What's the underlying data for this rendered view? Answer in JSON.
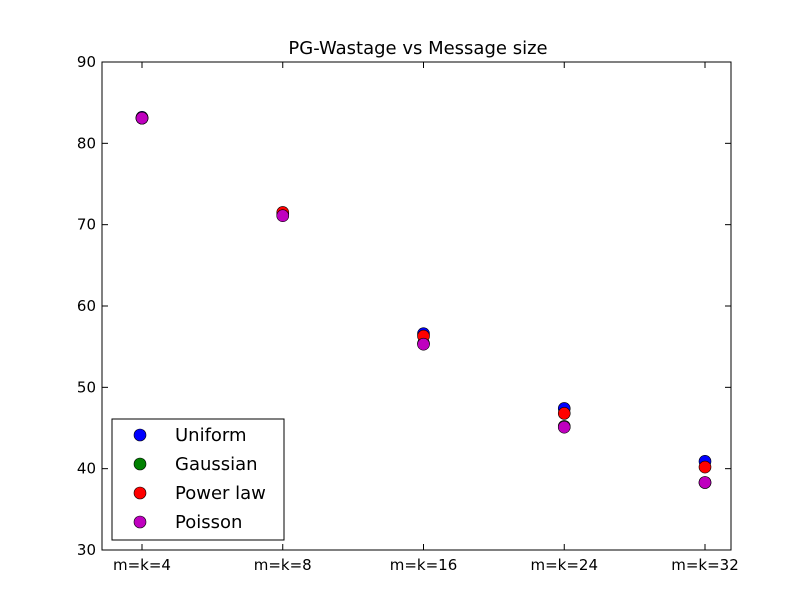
{
  "chart_data": {
    "type": "scatter",
    "title": "PG-Wastage vs Message size",
    "xlabel": "",
    "ylabel": "",
    "categories": [
      "m=k=4",
      "m=k=8",
      "m=k=16",
      "m=k=24",
      "m=k=32"
    ],
    "ylim": [
      30,
      90
    ],
    "yticks": [
      30,
      40,
      50,
      60,
      70,
      80,
      90
    ],
    "grid": false,
    "legend_position": "lower-left",
    "series": [
      {
        "name": "Uniform",
        "color": "#0000ff",
        "values": [
          83.2,
          71.3,
          56.6,
          47.4,
          40.9
        ]
      },
      {
        "name": "Gaussian",
        "color": "#008000",
        "values": [
          83.1,
          71.2,
          55.4,
          45.2,
          38.3
        ]
      },
      {
        "name": "Power law",
        "color": "#ff0000",
        "values": [
          83.1,
          71.5,
          56.3,
          46.8,
          40.2
        ]
      },
      {
        "name": "Poisson",
        "color": "#bf00bf",
        "values": [
          83.1,
          71.1,
          55.3,
          45.1,
          38.3
        ]
      }
    ]
  }
}
